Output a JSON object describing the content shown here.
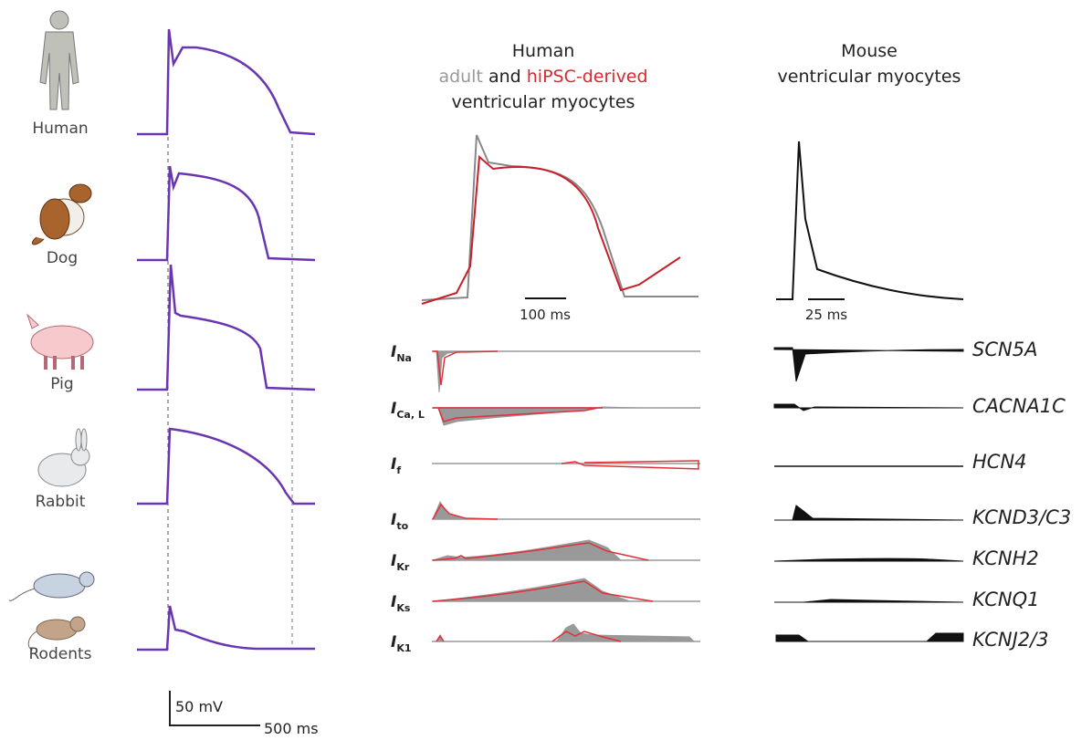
{
  "species": [
    "Human",
    "Dog",
    "Pig",
    "Rabbit",
    "Rodents"
  ],
  "left_scale": {
    "voltage": "50 mV",
    "time": "500 ms"
  },
  "human_header": {
    "title": "Human",
    "adult": "adult",
    "and": "and",
    "hipsc": "hiPSC-derived",
    "subtitle": "ventricular myocytes"
  },
  "mouse_header": {
    "title": "Mouse",
    "subtitle": "ventricular myocytes"
  },
  "human_scale": "100 ms",
  "mouse_scale": "25 ms",
  "currents": [
    {
      "main": "I",
      "sub": "Na"
    },
    {
      "main": "I",
      "sub": "Ca, L"
    },
    {
      "main": "I",
      "sub": "f"
    },
    {
      "main": "I",
      "sub": "to"
    },
    {
      "main": "I",
      "sub": "Kr"
    },
    {
      "main": "I",
      "sub": "Ks"
    },
    {
      "main": "I",
      "sub": "K1"
    }
  ],
  "genes": [
    "SCN5A",
    "CACNA1C",
    "HCN4",
    "KCND3/C3",
    "KCNH2",
    "KCNQ1",
    "KCNJ2/3"
  ]
}
